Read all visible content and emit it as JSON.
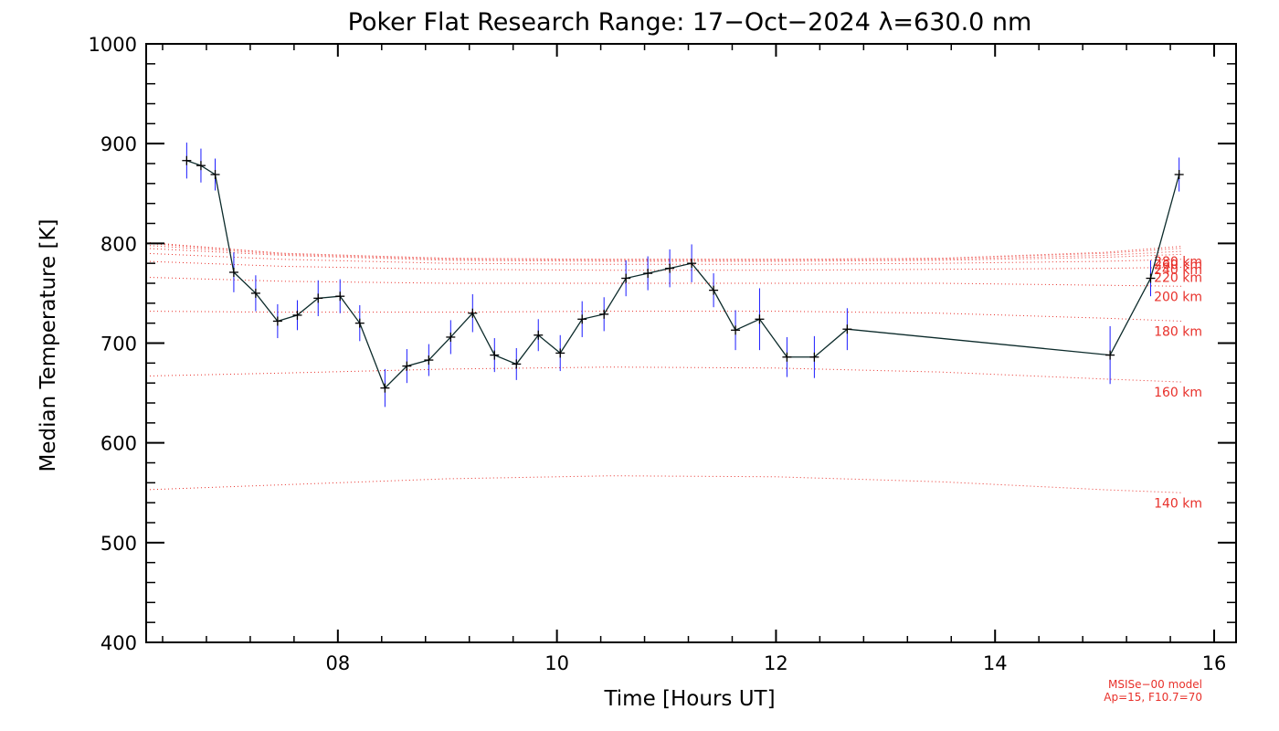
{
  "chart_data": {
    "type": "line",
    "title": "Poker Flat Research Range: 17−Oct−2024 λ=630.0 nm",
    "xlabel": "Time [Hours UT]",
    "ylabel": "Median Temperature [K]",
    "xlim": [
      6.25,
      16.2
    ],
    "ylim": [
      400,
      1000
    ],
    "x_ticks": [
      8,
      10,
      12,
      14,
      16
    ],
    "x_tick_labels": [
      "08",
      "10",
      "12",
      "14",
      "16"
    ],
    "y_ticks": [
      400,
      500,
      600,
      700,
      800,
      900,
      1000
    ],
    "y_tick_labels": [
      "400",
      "500",
      "600",
      "700",
      "800",
      "900",
      "1000"
    ],
    "colors": {
      "line": "#0b2a2a",
      "marker": "#000000",
      "error_bar": "#1a1aff",
      "model": "#e8302a"
    },
    "series": [
      {
        "name": "Median Temperature",
        "points": [
          {
            "x": 6.62,
            "y": 883,
            "err": 18
          },
          {
            "x": 6.75,
            "y": 878,
            "err": 17
          },
          {
            "x": 6.88,
            "y": 869,
            "err": 16
          },
          {
            "x": 7.05,
            "y": 771,
            "err": 20
          },
          {
            "x": 7.25,
            "y": 750,
            "err": 18
          },
          {
            "x": 7.45,
            "y": 722,
            "err": 17
          },
          {
            "x": 7.63,
            "y": 728,
            "err": 15
          },
          {
            "x": 7.82,
            "y": 745,
            "err": 18
          },
          {
            "x": 8.02,
            "y": 747,
            "err": 17
          },
          {
            "x": 8.2,
            "y": 720,
            "err": 18
          },
          {
            "x": 8.43,
            "y": 655,
            "err": 19
          },
          {
            "x": 8.63,
            "y": 677,
            "err": 17
          },
          {
            "x": 8.83,
            "y": 683,
            "err": 16
          },
          {
            "x": 9.03,
            "y": 706,
            "err": 17
          },
          {
            "x": 9.23,
            "y": 730,
            "err": 19
          },
          {
            "x": 9.43,
            "y": 688,
            "err": 17
          },
          {
            "x": 9.63,
            "y": 679,
            "err": 16
          },
          {
            "x": 9.83,
            "y": 708,
            "err": 16
          },
          {
            "x": 10.03,
            "y": 690,
            "err": 18
          },
          {
            "x": 10.23,
            "y": 724,
            "err": 18
          },
          {
            "x": 10.43,
            "y": 729,
            "err": 17
          },
          {
            "x": 10.63,
            "y": 765,
            "err": 18
          },
          {
            "x": 10.83,
            "y": 770,
            "err": 17
          },
          {
            "x": 11.03,
            "y": 775,
            "err": 19
          },
          {
            "x": 11.23,
            "y": 780,
            "err": 19
          },
          {
            "x": 11.43,
            "y": 753,
            "err": 17
          },
          {
            "x": 11.63,
            "y": 713,
            "err": 20
          },
          {
            "x": 11.85,
            "y": 724,
            "err": 31
          },
          {
            "x": 12.1,
            "y": 686,
            "err": 20
          },
          {
            "x": 12.35,
            "y": 686,
            "err": 21
          },
          {
            "x": 12.65,
            "y": 714,
            "err": 21
          },
          {
            "x": 15.05,
            "y": 688,
            "err": 29
          },
          {
            "x": 15.42,
            "y": 765,
            "err": 18
          },
          {
            "x": 15.68,
            "y": 869,
            "err": 17
          }
        ]
      }
    ],
    "model": {
      "name": "MSISe-00 model",
      "note_line1": "MSISe−00 model",
      "note_line2": "Ap=15, F10.7=70",
      "curves": [
        {
          "label": "140 km",
          "x": [
            6.25,
            7.5,
            9,
            10.5,
            12,
            13.5,
            15,
            15.7
          ],
          "y": [
            553,
            558,
            564,
            567,
            566,
            561,
            553,
            550
          ]
        },
        {
          "label": "160 km",
          "x": [
            6.25,
            7.5,
            9,
            10.5,
            12,
            13.5,
            15,
            15.7
          ],
          "y": [
            667,
            670,
            674,
            676,
            675,
            671,
            664,
            661
          ]
        },
        {
          "label": "180 km",
          "x": [
            6.25,
            7.5,
            9,
            10.5,
            12,
            13.5,
            15,
            15.7
          ],
          "y": [
            732,
            731,
            731,
            732,
            732,
            730,
            725,
            722
          ]
        },
        {
          "label": "200 km",
          "x": [
            6.25,
            7.5,
            9,
            10.5,
            12,
            13.5,
            15,
            15.7
          ],
          "y": [
            766,
            762,
            760,
            760,
            760,
            760,
            758,
            757
          ]
        },
        {
          "label": "220 km",
          "x": [
            6.25,
            7.5,
            9,
            10.5,
            12,
            13.5,
            15,
            15.7
          ],
          "y": [
            782,
            777,
            774,
            773,
            773,
            774,
            775,
            776
          ]
        },
        {
          "label": "240 km",
          "x": [
            6.25,
            7.5,
            9,
            10.5,
            12,
            13.5,
            15,
            15.7
          ],
          "y": [
            790,
            784,
            780,
            779,
            779,
            780,
            782,
            784
          ]
        },
        {
          "label": "260 km",
          "x": [
            6.25,
            7.5,
            9,
            10.5,
            12,
            13.5,
            15,
            15.7
          ],
          "y": [
            795,
            788,
            783,
            782,
            782,
            783,
            786,
            789
          ]
        },
        {
          "label": "280 km",
          "x": [
            6.25,
            7.5,
            9,
            10.5,
            12,
            13.5,
            15,
            15.7
          ],
          "y": [
            798,
            789,
            784,
            783,
            783,
            784,
            788,
            792
          ]
        },
        {
          "label": "",
          "x": [
            6.25,
            7.5,
            9,
            10.5,
            12,
            13.5,
            15,
            15.7
          ],
          "y": [
            800,
            790,
            785,
            784,
            784,
            785,
            790,
            795
          ]
        },
        {
          "label": "",
          "x": [
            6.25,
            7.5,
            9,
            10.5,
            12,
            13.5,
            15,
            15.7
          ],
          "y": [
            801,
            790,
            785,
            784,
            784,
            785,
            791,
            797
          ]
        }
      ]
    }
  }
}
